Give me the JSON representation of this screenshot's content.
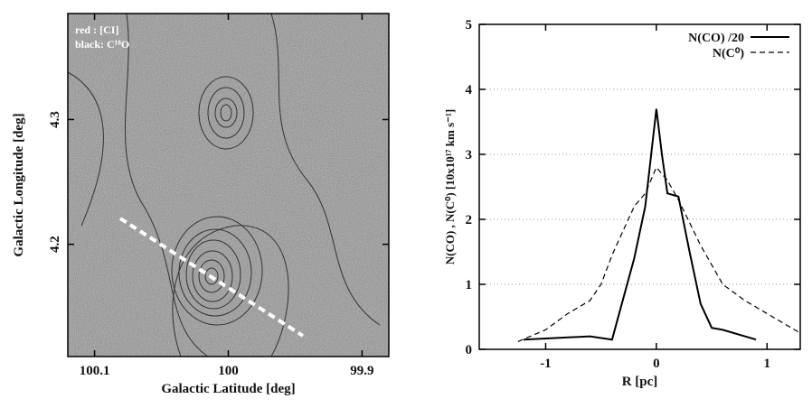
{
  "chart_data": [
    {
      "type": "map",
      "annotations": [
        "red : [CI]",
        "black: C¹⁸O"
      ],
      "xlabel": "Galactic Latitude [deg]",
      "ylabel": "Galactic Longitude [deg]",
      "xlim": [
        100.12,
        99.88
      ],
      "xticks": [
        100.1,
        100,
        99.9
      ],
      "ylim": [
        4.11,
        4.385
      ],
      "yticks": [
        4.2,
        4.3
      ]
    },
    {
      "type": "line",
      "xlabel": "R [pc]",
      "ylabel": "N(CO) , N(C⁰)  [10x10¹⁷ km s⁻¹]",
      "xlim": [
        -1.6,
        1.3
      ],
      "xticks": [
        -1,
        0,
        1
      ],
      "ylim": [
        0,
        5
      ],
      "yticks": [
        0,
        1,
        2,
        3,
        4,
        5
      ],
      "grid": true,
      "legend": "upper right",
      "series": [
        {
          "name": "N(CO) /20",
          "color": "#000000",
          "dash": "solid",
          "x": [
            -1.2,
            -0.6,
            -0.4,
            -0.2,
            -0.1,
            0,
            0.05,
            0.1,
            0.2,
            0.3,
            0.4,
            0.5,
            0.6,
            0.9
          ],
          "values": [
            0.15,
            0.2,
            0.15,
            1.4,
            2.2,
            3.7,
            3.0,
            2.4,
            2.35,
            1.5,
            0.7,
            0.33,
            0.3,
            0.15
          ]
        },
        {
          "name": "N(C⁰)",
          "color": "#000000",
          "dash": "dashed",
          "x": [
            -1.25,
            -1.0,
            -0.8,
            -0.6,
            -0.5,
            -0.4,
            -0.2,
            -0.1,
            0,
            0.1,
            0.2,
            0.4,
            0.6,
            0.8,
            1.0,
            1.2,
            1.3
          ],
          "values": [
            0.12,
            0.3,
            0.55,
            0.75,
            1.0,
            1.45,
            2.2,
            2.4,
            2.8,
            2.6,
            2.3,
            1.6,
            1.0,
            0.75,
            0.55,
            0.35,
            0.25
          ]
        }
      ]
    }
  ]
}
